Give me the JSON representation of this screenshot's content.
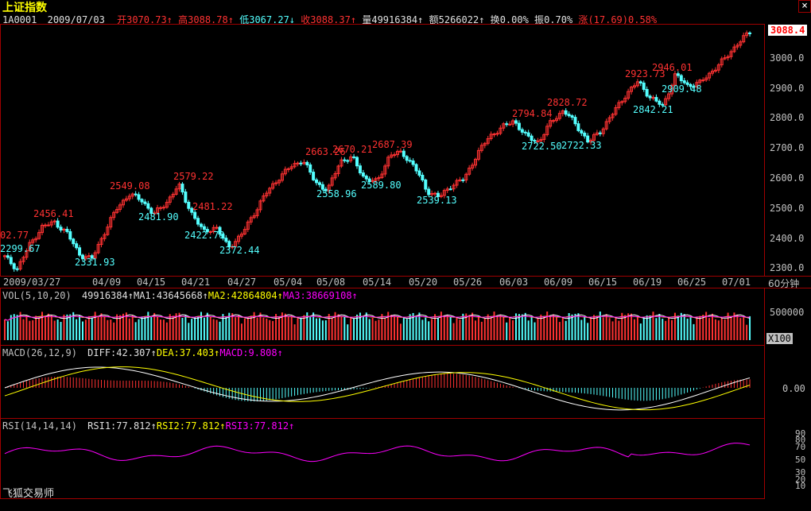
{
  "title": "上证指数",
  "header": {
    "code": "1A0001",
    "date": "2009/07/03",
    "open_label": "开",
    "open": "3070.73",
    "high_label": "高",
    "high": "3088.78",
    "low_label": "低",
    "low": "3067.27",
    "close_label": "收",
    "close": "3088.37",
    "volume_label": "量",
    "volume": "49916384",
    "amount_label": "额",
    "amount": "5266022",
    "turnover_label": "换",
    "turnover": "0.00%",
    "amplitude_label": "振",
    "amplitude": "0.70%",
    "change_label": "涨",
    "change": "(17.69)0.58%"
  },
  "price_axis": {
    "current": "3088.4",
    "ticks": [
      "3000.0",
      "2900.0",
      "2800.0",
      "2700.0",
      "2600.0",
      "2500.0",
      "2400.0",
      "2300.0"
    ]
  },
  "date_axis": {
    "labels": [
      "2009/03/27",
      "04/09",
      "04/15",
      "04/21",
      "04/27",
      "05/04",
      "05/08",
      "05/14",
      "05/20",
      "05/26",
      "06/03",
      "06/09",
      "06/15",
      "06/19",
      "06/25",
      "07/01"
    ],
    "period": "60分钟"
  },
  "annotations": {
    "highs": [
      "02.77",
      "2456.41",
      "2549.08",
      "2579.22",
      "2481.22",
      "2663.26",
      "2670.21",
      "2687.39",
      "2794.84",
      "2828.72",
      "2923.73",
      "2946.01"
    ],
    "lows": [
      "2299.67",
      "2331.93",
      "2481.90",
      "2422.79",
      "2372.44",
      "2558.96",
      "2589.80",
      "2539.13",
      "2722.50",
      "2722.33",
      "2842.21",
      "2909.48"
    ]
  },
  "vol_panel": {
    "label": "VOL(5,10,20)",
    "value": "49916384",
    "ma1": "MA1:43645668",
    "ma2": "MA2:42864804",
    "ma3": "MA3:38669108",
    "axis_tick": "500000",
    "unit": "X100"
  },
  "macd_panel": {
    "label": "MACD(26,12,9)",
    "diff": "DIFF:42.307",
    "dea": "DEA:37.403",
    "macd": "MACD:9.808",
    "axis_tick": "0.00"
  },
  "rsi_panel": {
    "label": "RSI(14,14,14)",
    "rsi1": "RSI1:77.812",
    "rsi2": "RSI2:77.812",
    "rsi3": "RSI3:77.812",
    "ticks": [
      "90",
      "80",
      "70",
      "50",
      "30",
      "20",
      "10"
    ]
  },
  "footer": {
    "brand": "飞狐交易师"
  },
  "window_controls": {
    "close": "×"
  },
  "colors": {
    "up": "#ff3232",
    "down": "#54ffff",
    "frame": "#a00000",
    "ma_white": "#ffffff",
    "ma_yellow": "#ffff00",
    "ma_magenta": "#ff00ff",
    "ma_green": "#00ff00"
  },
  "chart_data": [
    {
      "type": "candlestick",
      "title": "上证指数",
      "period": "60分钟",
      "ylim": [
        2280,
        3100
      ],
      "labeled_points": [
        {
          "label": "2299.67",
          "kind": "low"
        },
        {
          "label": "2456.41",
          "kind": "high"
        },
        {
          "label": "2331.93",
          "kind": "low"
        },
        {
          "label": "2549.08",
          "kind": "high"
        },
        {
          "label": "2481.90",
          "kind": "low"
        },
        {
          "label": "2579.22",
          "kind": "high"
        },
        {
          "label": "2481.22",
          "kind": "high"
        },
        {
          "label": "2422.79",
          "kind": "low"
        },
        {
          "label": "2372.44",
          "kind": "low"
        },
        {
          "label": "2663.26",
          "kind": "high"
        },
        {
          "label": "2670.21",
          "kind": "high"
        },
        {
          "label": "2558.96",
          "kind": "low"
        },
        {
          "label": "2687.39",
          "kind": "high"
        },
        {
          "label": "2589.80",
          "kind": "low"
        },
        {
          "label": "2539.13",
          "kind": "low"
        },
        {
          "label": "2794.84",
          "kind": "high"
        },
        {
          "label": "2722.50",
          "kind": "low"
        },
        {
          "label": "2828.72",
          "kind": "high"
        },
        {
          "label": "2722.33",
          "kind": "low"
        },
        {
          "label": "2923.73",
          "kind": "high"
        },
        {
          "label": "2842.21",
          "kind": "low"
        },
        {
          "label": "2946.01",
          "kind": "high"
        },
        {
          "label": "2909.48",
          "kind": "low"
        }
      ],
      "close_path": [
        2340,
        2300,
        2380,
        2440,
        2456,
        2420,
        2350,
        2332,
        2420,
        2500,
        2549,
        2530,
        2482,
        2520,
        2579,
        2490,
        2423,
        2440,
        2372,
        2410,
        2480,
        2550,
        2600,
        2640,
        2663,
        2590,
        2560,
        2660,
        2670,
        2600,
        2590,
        2680,
        2687,
        2640,
        2560,
        2539,
        2580,
        2600,
        2680,
        2740,
        2770,
        2794,
        2740,
        2723,
        2790,
        2829,
        2780,
        2722,
        2760,
        2820,
        2880,
        2924,
        2870,
        2842,
        2946,
        2910,
        2920,
        2960,
        3000,
        3050,
        3088
      ]
    }
  ]
}
